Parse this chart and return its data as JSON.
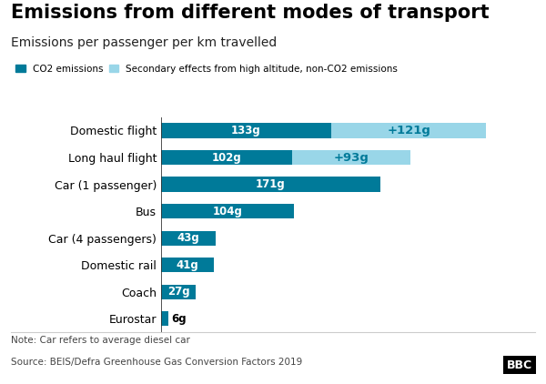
{
  "title": "Emissions from different modes of transport",
  "subtitle": "Emissions per passenger per km travelled",
  "categories": [
    "Domestic flight",
    "Long haul flight",
    "Car (1 passenger)",
    "Bus",
    "Car (4 passengers)",
    "Domestic rail",
    "Coach",
    "Eurostar"
  ],
  "co2_values": [
    133,
    102,
    171,
    104,
    43,
    41,
    27,
    6
  ],
  "secondary_values": [
    121,
    93,
    0,
    0,
    0,
    0,
    0,
    0
  ],
  "co2_color": "#007a99",
  "secondary_color": "#99d6e8",
  "bar_height": 0.55,
  "xlim": [
    0,
    290
  ],
  "legend_co2": "CO2 emissions",
  "legend_secondary": "Secondary effects from high altitude, non-CO2 emissions",
  "note": "Note: Car refers to average diesel car",
  "source": "Source: BEIS/Defra Greenhouse Gas Conversion Factors 2019",
  "bbc_text": "BBC",
  "background_color": "#ffffff",
  "title_fontsize": 15,
  "subtitle_fontsize": 10,
  "label_fontsize": 8.5,
  "tick_fontsize": 9,
  "note_fontsize": 7.5
}
